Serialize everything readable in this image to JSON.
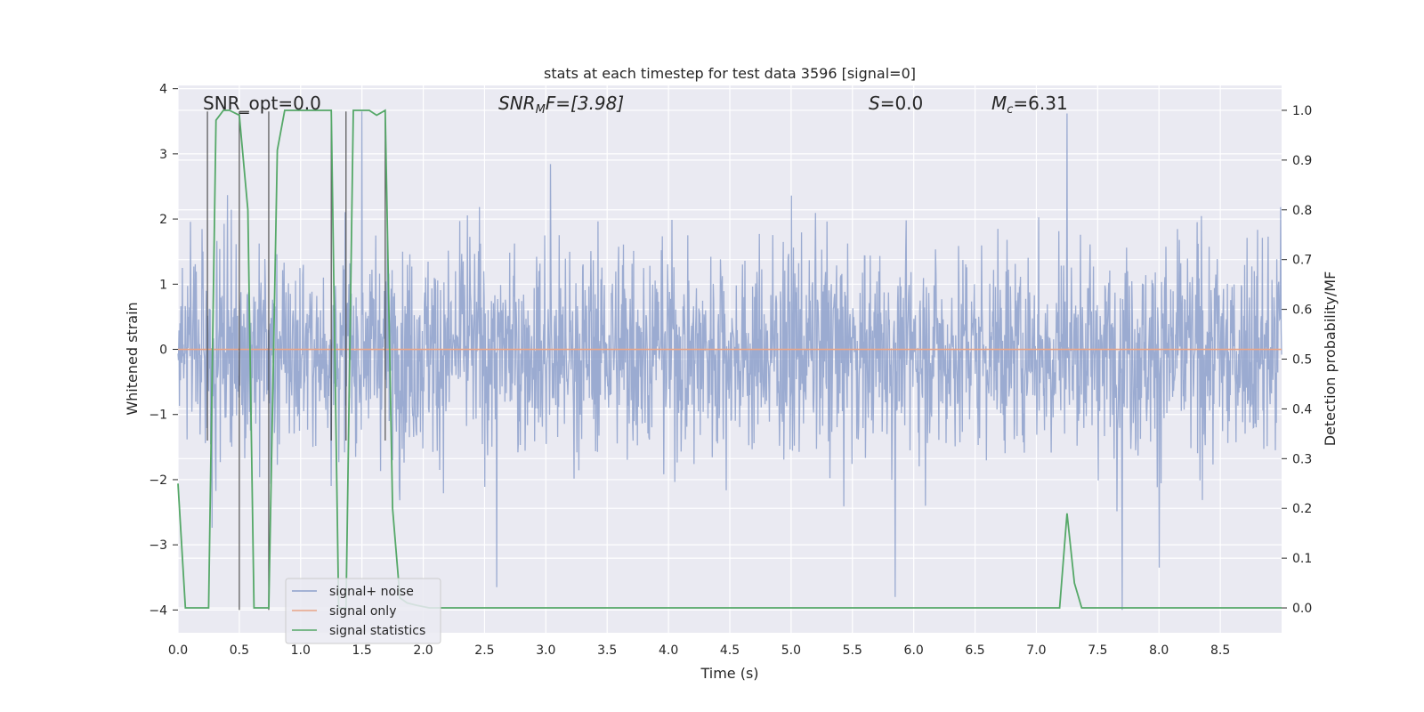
{
  "chart_data": {
    "type": "line",
    "title": "stats at each timestep for test data 3596 [signal=0]",
    "xlabel": "Time (s)",
    "ylabel_left": "Whitened strain",
    "ylabel_right": "Detection probability/MF",
    "xlim": [
      0.0,
      9.0
    ],
    "ylim_left": [
      -4.35,
      4.05
    ],
    "ylim_right": [
      -0.05,
      1.05
    ],
    "x_ticks": [
      0.0,
      0.5,
      1.0,
      1.5,
      2.0,
      2.5,
      3.0,
      3.5,
      4.0,
      4.5,
      5.0,
      5.5,
      6.0,
      6.5,
      7.0,
      7.5,
      8.0,
      8.5
    ],
    "x_tick_labels": [
      "0.0",
      "0.5",
      "1.0",
      "1.5",
      "2.0",
      "2.5",
      "3.0",
      "3.5",
      "4.0",
      "4.5",
      "5.0",
      "5.5",
      "6.0",
      "6.5",
      "7.0",
      "7.5",
      "8.0",
      "8.5"
    ],
    "y_left_ticks": [
      4,
      3,
      2,
      1,
      0,
      -1,
      -2,
      -3,
      -4
    ],
    "y_left_tick_labels": [
      "4",
      "3",
      "2",
      "1",
      "0",
      "−1",
      "−2",
      "−3",
      "−4"
    ],
    "y_right_ticks": [
      1.0,
      0.9,
      0.8,
      0.7,
      0.6,
      0.5,
      0.4,
      0.3,
      0.2,
      0.1,
      0.0
    ],
    "y_right_tick_labels": [
      "1.0",
      "0.9",
      "0.8",
      "0.7",
      "0.6",
      "0.5",
      "0.4",
      "0.3",
      "0.2",
      "0.1",
      "0.0"
    ],
    "annotations": {
      "snr_opt": "SNR_opt=0.0",
      "snr_mf_base": "SNR",
      "snr_mf_sub": "M",
      "snr_mf_rest": "F=[3.98]",
      "s_val_var": "S",
      "s_val_rest": "=0.0",
      "mc_base": "M",
      "mc_sub": "c",
      "mc_rest": "=6.31"
    },
    "legend": [
      "signal+ noise",
      "signal only",
      "signal statistics"
    ],
    "series": [
      {
        "name": "signal+ noise",
        "color": "#8da0cb",
        "description": "whitened strain noise, roughly within [-3.8, 3.7], dense samples",
        "duration_s": 9.0,
        "n_samples": 2300,
        "peaks": [
          [
            1.5,
            3.65
          ],
          [
            7.25,
            3.62
          ],
          [
            5.85,
            -3.8
          ],
          [
            2.6,
            -3.65
          ],
          [
            7.7,
            -4.0
          ],
          [
            8.0,
            -3.35
          ]
        ]
      },
      {
        "name": "signal only",
        "color": "#e8a487",
        "x": [
          0.0,
          9.0
        ],
        "y": [
          0.0,
          0.0
        ]
      },
      {
        "name": "signal statistics",
        "color": "#55a868",
        "x": [
          0.0,
          0.06,
          0.25,
          0.31,
          0.37,
          0.42,
          0.5,
          0.57,
          0.62,
          0.74,
          0.81,
          0.87,
          1.0,
          1.25,
          1.31,
          1.37,
          1.43,
          1.56,
          1.62,
          1.69,
          1.75,
          1.81,
          1.87,
          1.95,
          2.05,
          7.19,
          7.25,
          7.31,
          7.37,
          7.43,
          9.0
        ],
        "y": [
          0.25,
          0.0,
          0.0,
          0.98,
          1.0,
          1.0,
          0.99,
          0.8,
          0.0,
          0.0,
          0.92,
          1.0,
          1.0,
          1.0,
          0.0,
          0.0,
          1.0,
          1.0,
          0.99,
          1.0,
          0.2,
          0.02,
          0.01,
          0.005,
          0.0,
          0.0,
          0.19,
          0.05,
          0.0,
          0.0,
          0.0
        ]
      },
      {
        "name": "event markers",
        "color": "#444444",
        "x": [
          0.24,
          0.5,
          0.74,
          1.25,
          1.37,
          1.69
        ],
        "y_top": [
          3.65,
          3.65,
          3.65,
          3.65,
          3.65,
          3.65
        ],
        "y_bottom": [
          -1.4,
          -4.0,
          -4.0,
          -1.4,
          -1.4,
          -1.4
        ],
        "caps": [
          [
            0.5,
            0.58,
            3.65
          ]
        ]
      }
    ]
  }
}
